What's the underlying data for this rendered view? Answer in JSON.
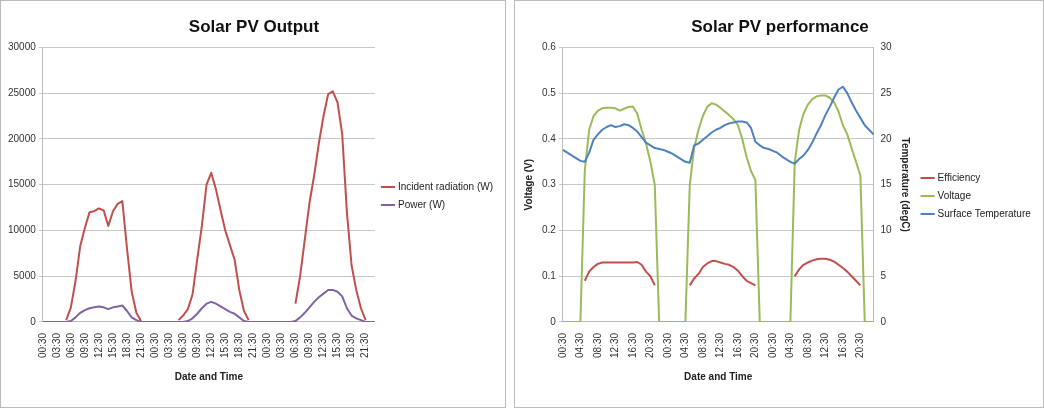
{
  "chart_data": [
    {
      "type": "line",
      "title": "Solar PV Output",
      "xlabel": "Date and Time",
      "categories": [
        "00:30",
        null,
        null,
        "03:30",
        null,
        null,
        "06:30",
        null,
        null,
        "09:30",
        null,
        null,
        "12:30",
        null,
        null,
        "15:30",
        null,
        null,
        "18:30",
        null,
        null,
        "21:30",
        null,
        null,
        "00:30",
        null,
        null,
        "03:30",
        null,
        null,
        "06:30",
        null,
        null,
        "09:30",
        null,
        null,
        "12:30",
        null,
        null,
        "15:30",
        null,
        null,
        "18:30",
        null,
        null,
        "21:30",
        null,
        null,
        "00:30",
        null,
        null,
        "03:30",
        null,
        null,
        "06:30",
        null,
        null,
        "09:30",
        null,
        null,
        "12:30",
        null,
        null,
        "15:30",
        null,
        null,
        "18:30",
        null,
        null,
        "21:30",
        null,
        null
      ],
      "series": [
        {
          "name": "Incident radiation (W)",
          "color": "#c0504d",
          "values": [
            null,
            null,
            null,
            null,
            null,
            200,
            1600,
            4500,
            8300,
            10300,
            12000,
            12100,
            12400,
            12200,
            10500,
            12100,
            12900,
            13200,
            8000,
            3300,
            1000,
            100,
            null,
            null,
            null,
            null,
            null,
            null,
            null,
            200,
            700,
            1400,
            3000,
            6800,
            10500,
            15000,
            16300,
            14500,
            12200,
            10000,
            8400,
            6800,
            3500,
            1200,
            200,
            null,
            null,
            null,
            null,
            null,
            null,
            null,
            null,
            null,
            2000,
            5000,
            9000,
            13000,
            16000,
            19500,
            22500,
            24900,
            25200,
            24000,
            20500,
            12000,
            6200,
            3500,
            1500,
            200,
            null,
            null
          ]
        },
        {
          "name": "Power (W)",
          "color": "#8064a2",
          "values": [
            0,
            0,
            0,
            0,
            0,
            0,
            100,
            500,
            1000,
            1300,
            1500,
            1600,
            1700,
            1600,
            1400,
            1600,
            1700,
            1800,
            1200,
            500,
            200,
            0,
            0,
            0,
            0,
            0,
            0,
            0,
            0,
            0,
            0,
            100,
            400,
            900,
            1500,
            2000,
            2200,
            2000,
            1700,
            1400,
            1100,
            900,
            500,
            100,
            0,
            0,
            0,
            0,
            0,
            0,
            0,
            0,
            0,
            0,
            100,
            500,
            1000,
            1600,
            2200,
            2700,
            3100,
            3500,
            3500,
            3300,
            2800,
            1500,
            700,
            400,
            200,
            0,
            0,
            0
          ]
        }
      ],
      "ylim": [
        0,
        30000
      ],
      "yticks": [
        0,
        5000,
        10000,
        15000,
        20000,
        25000,
        30000
      ],
      "grid": "y",
      "legend": "right",
      "marker": "none"
    },
    {
      "type": "line",
      "title": "Solar PV performance",
      "xlabel": "Date and Time",
      "ylabel": "Voltage (V)",
      "y2label": "Temperature (degC)",
      "categories": [
        "00:30",
        null,
        null,
        null,
        "04:30",
        null,
        null,
        null,
        "08:30",
        null,
        null,
        null,
        "12:30",
        null,
        null,
        null,
        "16:30",
        null,
        null,
        null,
        "20:30",
        null,
        null,
        null,
        "00:30",
        null,
        null,
        null,
        "04:30",
        null,
        null,
        null,
        "08:30",
        null,
        null,
        null,
        "12:30",
        null,
        null,
        null,
        "16:30",
        null,
        null,
        null,
        "20:30",
        null,
        null,
        null,
        "00:30",
        null,
        null,
        null,
        "04:30",
        null,
        null,
        null,
        "08:30",
        null,
        null,
        null,
        "12:30",
        null,
        null,
        null,
        "16:30",
        null,
        null,
        null,
        "20:30",
        null,
        null,
        null
      ],
      "series": [
        {
          "name": "Efficiency",
          "color": "#c0504d",
          "values": [
            null,
            null,
            null,
            null,
            null,
            0.09,
            0.11,
            0.12,
            0.127,
            0.13,
            0.13,
            0.13,
            0.13,
            0.13,
            0.13,
            0.13,
            0.13,
            0.131,
            0.125,
            0.11,
            0.1,
            0.08,
            null,
            null,
            null,
            null,
            null,
            null,
            null,
            0.08,
            0.095,
            0.105,
            0.12,
            0.128,
            0.133,
            0.133,
            0.13,
            0.127,
            0.125,
            0.12,
            0.112,
            0.1,
            0.09,
            0.085,
            0.08,
            null,
            null,
            null,
            null,
            null,
            null,
            null,
            null,
            0.1,
            0.115,
            0.125,
            0.13,
            0.134,
            0.137,
            0.138,
            0.138,
            0.136,
            0.132,
            0.125,
            0.118,
            0.11,
            0.1,
            0.09,
            0.08,
            null,
            null,
            null
          ]
        },
        {
          "name": "Voltage",
          "color": "#9bbb59",
          "values": [
            0,
            0,
            0,
            0,
            0,
            0.33,
            0.42,
            0.45,
            0.462,
            0.467,
            0.468,
            0.468,
            0.467,
            0.462,
            0.466,
            0.47,
            0.471,
            0.455,
            0.42,
            0.39,
            0.35,
            0.3,
            0,
            0,
            0,
            0,
            0,
            0,
            0,
            0.3,
            0.38,
            0.42,
            0.45,
            0.47,
            0.478,
            0.475,
            0.468,
            0.46,
            0.452,
            0.443,
            0.43,
            0.4,
            0.36,
            0.33,
            0.31,
            0,
            0,
            0,
            0,
            0,
            0,
            0,
            0,
            0.35,
            0.42,
            0.455,
            0.475,
            0.487,
            0.493,
            0.495,
            0.495,
            0.49,
            0.48,
            0.46,
            0.43,
            0.41,
            0.38,
            0.35,
            0.32,
            0,
            0,
            0
          ]
        },
        {
          "name": "Surface Temperature",
          "color": "#4f81bd",
          "axis": "y2",
          "values": [
            18.8,
            18.5,
            18.2,
            17.9,
            17.6,
            17.5,
            18.5,
            19.9,
            20.5,
            21.0,
            21.3,
            21.5,
            21.3,
            21.4,
            21.6,
            21.5,
            21.2,
            20.8,
            20.2,
            19.6,
            19.3,
            19.0,
            18.9,
            18.8,
            18.6,
            18.4,
            18.1,
            17.8,
            17.5,
            17.4,
            19.3,
            19.5,
            19.9,
            20.3,
            20.7,
            21.0,
            21.2,
            21.5,
            21.7,
            21.8,
            21.9,
            21.9,
            21.8,
            21.2,
            19.7,
            19.3,
            19.0,
            18.9,
            18.7,
            18.5,
            18.1,
            17.8,
            17.5,
            17.3,
            17.8,
            18.2,
            18.8,
            19.6,
            20.6,
            21.5,
            22.6,
            23.5,
            24.5,
            25.4,
            25.7,
            25.0,
            24.0,
            23.1,
            22.3,
            21.5,
            21.0,
            20.5
          ]
        }
      ],
      "ylim": [
        0,
        0.6
      ],
      "yticks": [
        0,
        0.1,
        0.2,
        0.3,
        0.4,
        0.5,
        0.6
      ],
      "y2lim": [
        0,
        30
      ],
      "y2ticks": [
        0,
        5,
        10,
        15,
        20,
        25,
        30
      ],
      "grid": "y",
      "legend": "right",
      "marker": "none"
    }
  ]
}
